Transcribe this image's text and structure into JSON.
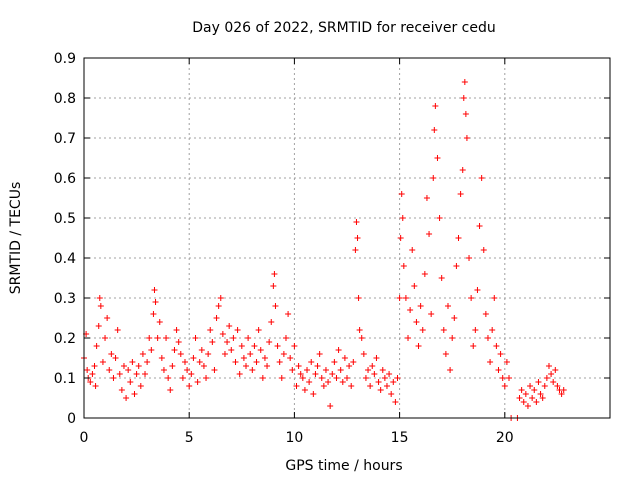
{
  "chart_data": {
    "type": "scatter",
    "title": "Day 026 of 2022, SRMTID for receiver cedu",
    "xlabel": "GPS time / hours",
    "ylabel": "SRMTID / TECUs",
    "xlim": [
      0,
      25
    ],
    "ylim": [
      0,
      0.9
    ],
    "grid": true,
    "marker": "+",
    "colors": {
      "points": "#ff0000",
      "grid": "#a0a0a0",
      "axis": "#000000"
    },
    "xticks": [
      0,
      5,
      10,
      15,
      20
    ],
    "xtick_labels": [
      "0",
      "5",
      "10",
      "15",
      "20"
    ],
    "yticks": [
      0,
      0.1,
      0.2,
      0.3,
      0.4,
      0.5,
      0.6,
      0.7,
      0.8,
      0.9
    ],
    "ytick_labels": [
      "0",
      "0.1",
      "0.2",
      "0.3",
      "0.4",
      "0.5",
      "0.6",
      "0.7",
      "0.8",
      "0.9"
    ],
    "series": [
      {
        "name": "SRMTID",
        "points": [
          [
            0.0,
            0.15
          ],
          [
            0.1,
            0.21
          ],
          [
            0.15,
            0.12
          ],
          [
            0.2,
            0.1
          ],
          [
            0.3,
            0.09
          ],
          [
            0.4,
            0.11
          ],
          [
            0.5,
            0.13
          ],
          [
            0.55,
            0.08
          ],
          [
            0.6,
            0.18
          ],
          [
            0.7,
            0.23
          ],
          [
            0.75,
            0.3
          ],
          [
            0.8,
            0.28
          ],
          [
            0.9,
            0.14
          ],
          [
            1.0,
            0.2
          ],
          [
            1.1,
            0.25
          ],
          [
            1.2,
            0.12
          ],
          [
            1.3,
            0.16
          ],
          [
            1.4,
            0.1
          ],
          [
            1.5,
            0.15
          ],
          [
            1.6,
            0.22
          ],
          [
            1.7,
            0.11
          ],
          [
            1.8,
            0.07
          ],
          [
            1.9,
            0.13
          ],
          [
            2.0,
            0.05
          ],
          [
            2.1,
            0.12
          ],
          [
            2.2,
            0.09
          ],
          [
            2.3,
            0.14
          ],
          [
            2.4,
            0.06
          ],
          [
            2.5,
            0.11
          ],
          [
            2.6,
            0.13
          ],
          [
            2.7,
            0.08
          ],
          [
            2.8,
            0.16
          ],
          [
            2.9,
            0.11
          ],
          [
            3.0,
            0.14
          ],
          [
            3.1,
            0.2
          ],
          [
            3.2,
            0.17
          ],
          [
            3.3,
            0.26
          ],
          [
            3.35,
            0.32
          ],
          [
            3.4,
            0.29
          ],
          [
            3.5,
            0.2
          ],
          [
            3.6,
            0.24
          ],
          [
            3.7,
            0.15
          ],
          [
            3.8,
            0.12
          ],
          [
            3.9,
            0.2
          ],
          [
            4.0,
            0.1
          ],
          [
            4.1,
            0.07
          ],
          [
            4.2,
            0.13
          ],
          [
            4.3,
            0.17
          ],
          [
            4.4,
            0.22
          ],
          [
            4.5,
            0.19
          ],
          [
            4.6,
            0.16
          ],
          [
            4.7,
            0.1
          ],
          [
            4.8,
            0.14
          ],
          [
            4.9,
            0.12
          ],
          [
            5.0,
            0.08
          ],
          [
            5.1,
            0.11
          ],
          [
            5.2,
            0.15
          ],
          [
            5.3,
            0.2
          ],
          [
            5.4,
            0.09
          ],
          [
            5.5,
            0.14
          ],
          [
            5.6,
            0.17
          ],
          [
            5.7,
            0.13
          ],
          [
            5.8,
            0.1
          ],
          [
            5.9,
            0.16
          ],
          [
            6.0,
            0.22
          ],
          [
            6.1,
            0.19
          ],
          [
            6.2,
            0.12
          ],
          [
            6.3,
            0.25
          ],
          [
            6.4,
            0.28
          ],
          [
            6.5,
            0.3
          ],
          [
            6.6,
            0.21
          ],
          [
            6.7,
            0.16
          ],
          [
            6.8,
            0.19
          ],
          [
            6.9,
            0.23
          ],
          [
            7.0,
            0.17
          ],
          [
            7.1,
            0.2
          ],
          [
            7.2,
            0.14
          ],
          [
            7.3,
            0.22
          ],
          [
            7.4,
            0.11
          ],
          [
            7.5,
            0.18
          ],
          [
            7.6,
            0.15
          ],
          [
            7.7,
            0.13
          ],
          [
            7.8,
            0.2
          ],
          [
            7.9,
            0.16
          ],
          [
            8.0,
            0.12
          ],
          [
            8.1,
            0.18
          ],
          [
            8.2,
            0.14
          ],
          [
            8.3,
            0.22
          ],
          [
            8.4,
            0.17
          ],
          [
            8.5,
            0.1
          ],
          [
            8.6,
            0.15
          ],
          [
            8.7,
            0.13
          ],
          [
            8.8,
            0.19
          ],
          [
            8.9,
            0.24
          ],
          [
            9.0,
            0.33
          ],
          [
            9.05,
            0.36
          ],
          [
            9.1,
            0.28
          ],
          [
            9.2,
            0.18
          ],
          [
            9.3,
            0.14
          ],
          [
            9.4,
            0.1
          ],
          [
            9.5,
            0.16
          ],
          [
            9.6,
            0.2
          ],
          [
            9.7,
            0.26
          ],
          [
            9.8,
            0.15
          ],
          [
            9.9,
            0.12
          ],
          [
            10.0,
            0.18
          ],
          [
            10.1,
            0.08
          ],
          [
            10.2,
            0.13
          ],
          [
            10.3,
            0.11
          ],
          [
            10.4,
            0.1
          ],
          [
            10.5,
            0.07
          ],
          [
            10.6,
            0.12
          ],
          [
            10.7,
            0.09
          ],
          [
            10.8,
            0.14
          ],
          [
            10.9,
            0.06
          ],
          [
            11.0,
            0.11
          ],
          [
            11.1,
            0.13
          ],
          [
            11.2,
            0.16
          ],
          [
            11.3,
            0.1
          ],
          [
            11.4,
            0.08
          ],
          [
            11.5,
            0.12
          ],
          [
            11.6,
            0.09
          ],
          [
            11.7,
            0.03
          ],
          [
            11.8,
            0.11
          ],
          [
            11.9,
            0.14
          ],
          [
            12.0,
            0.1
          ],
          [
            12.1,
            0.17
          ],
          [
            12.2,
            0.12
          ],
          [
            12.3,
            0.09
          ],
          [
            12.4,
            0.15
          ],
          [
            12.5,
            0.1
          ],
          [
            12.6,
            0.13
          ],
          [
            12.7,
            0.08
          ],
          [
            12.8,
            0.14
          ],
          [
            12.9,
            0.42
          ],
          [
            12.95,
            0.49
          ],
          [
            13.0,
            0.45
          ],
          [
            13.05,
            0.3
          ],
          [
            13.1,
            0.22
          ],
          [
            13.2,
            0.2
          ],
          [
            13.3,
            0.16
          ],
          [
            13.4,
            0.1
          ],
          [
            13.5,
            0.12
          ],
          [
            13.6,
            0.08
          ],
          [
            13.7,
            0.13
          ],
          [
            13.8,
            0.11
          ],
          [
            13.9,
            0.15
          ],
          [
            14.0,
            0.09
          ],
          [
            14.1,
            0.07
          ],
          [
            14.2,
            0.12
          ],
          [
            14.3,
            0.1
          ],
          [
            14.4,
            0.08
          ],
          [
            14.5,
            0.11
          ],
          [
            14.6,
            0.06
          ],
          [
            14.7,
            0.09
          ],
          [
            14.8,
            0.04
          ],
          [
            14.9,
            0.1
          ],
          [
            15.0,
            0.3
          ],
          [
            15.05,
            0.45
          ],
          [
            15.1,
            0.56
          ],
          [
            15.15,
            0.5
          ],
          [
            15.2,
            0.38
          ],
          [
            15.3,
            0.3
          ],
          [
            15.4,
            0.2
          ],
          [
            15.5,
            0.27
          ],
          [
            15.6,
            0.42
          ],
          [
            15.7,
            0.33
          ],
          [
            15.8,
            0.24
          ],
          [
            15.9,
            0.18
          ],
          [
            16.0,
            0.28
          ],
          [
            16.1,
            0.22
          ],
          [
            16.2,
            0.36
          ],
          [
            16.3,
            0.55
          ],
          [
            16.4,
            0.46
          ],
          [
            16.5,
            0.26
          ],
          [
            16.6,
            0.6
          ],
          [
            16.65,
            0.72
          ],
          [
            16.7,
            0.78
          ],
          [
            16.8,
            0.65
          ],
          [
            16.9,
            0.5
          ],
          [
            17.0,
            0.35
          ],
          [
            17.1,
            0.22
          ],
          [
            17.2,
            0.16
          ],
          [
            17.3,
            0.28
          ],
          [
            17.4,
            0.12
          ],
          [
            17.5,
            0.2
          ],
          [
            17.6,
            0.25
          ],
          [
            17.7,
            0.38
          ],
          [
            17.8,
            0.45
          ],
          [
            17.9,
            0.56
          ],
          [
            18.0,
            0.62
          ],
          [
            18.05,
            0.8
          ],
          [
            18.1,
            0.84
          ],
          [
            18.15,
            0.76
          ],
          [
            18.2,
            0.7
          ],
          [
            18.3,
            0.4
          ],
          [
            18.4,
            0.3
          ],
          [
            18.5,
            0.18
          ],
          [
            18.6,
            0.22
          ],
          [
            18.7,
            0.32
          ],
          [
            18.8,
            0.48
          ],
          [
            18.9,
            0.6
          ],
          [
            19.0,
            0.42
          ],
          [
            19.1,
            0.26
          ],
          [
            19.2,
            0.2
          ],
          [
            19.3,
            0.14
          ],
          [
            19.4,
            0.22
          ],
          [
            19.5,
            0.3
          ],
          [
            19.6,
            0.18
          ],
          [
            19.7,
            0.12
          ],
          [
            19.8,
            0.16
          ],
          [
            19.9,
            0.1
          ],
          [
            20.0,
            0.08
          ],
          [
            20.1,
            0.14
          ],
          [
            20.2,
            0.1
          ],
          [
            20.3,
            0.0
          ],
          [
            20.6,
            0.0
          ],
          [
            20.7,
            0.05
          ],
          [
            20.8,
            0.07
          ],
          [
            20.9,
            0.04
          ],
          [
            21.0,
            0.06
          ],
          [
            21.1,
            0.03
          ],
          [
            21.2,
            0.08
          ],
          [
            21.3,
            0.05
          ],
          [
            21.4,
            0.07
          ],
          [
            21.5,
            0.04
          ],
          [
            21.6,
            0.09
          ],
          [
            21.7,
            0.06
          ],
          [
            21.8,
            0.05
          ],
          [
            21.9,
            0.08
          ],
          [
            22.0,
            0.1
          ],
          [
            22.1,
            0.13
          ],
          [
            22.2,
            0.11
          ],
          [
            22.3,
            0.09
          ],
          [
            22.4,
            0.12
          ],
          [
            22.5,
            0.08
          ],
          [
            22.6,
            0.07
          ],
          [
            22.7,
            0.06
          ],
          [
            22.8,
            0.07
          ]
        ]
      }
    ]
  }
}
